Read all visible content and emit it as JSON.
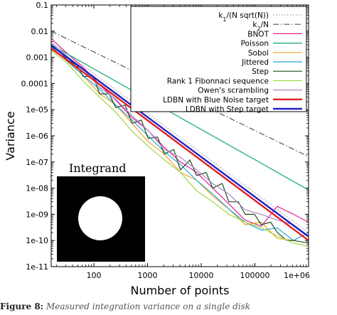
{
  "chart_data": {
    "type": "line",
    "xlabel": "Number of points",
    "ylabel": "Variance",
    "xscale": "log",
    "yscale": "log",
    "xlim": [
      16,
      1000000
    ],
    "ylim": [
      1e-11,
      0.1
    ],
    "x_ticks": [
      "100",
      "1000",
      "10000",
      "100000",
      "1e+06"
    ],
    "y_ticks": [
      "0.1",
      "0.01",
      "0.001",
      "0.0001",
      "1e-05",
      "1e-06",
      "1e-07",
      "1e-08",
      "1e-09",
      "1e-10",
      "1e-11"
    ],
    "legend_position": "top-right",
    "series": [
      {
        "name": "k1/(N sqrt(N))",
        "color": "#999999",
        "dash": "dotted",
        "x": [
          16,
          1000000
        ],
        "y": [
          0.0039,
          2e-10
        ]
      },
      {
        "name": "k2/N",
        "color": "#555555",
        "dash": "dashdot",
        "x": [
          16,
          1000000
        ],
        "y": [
          0.01,
          1.6e-07
        ]
      },
      {
        "name": "BNOT",
        "color": "#e0209a",
        "x": [
          16,
          32,
          64,
          128,
          256,
          512,
          1024,
          2048,
          4096,
          8192,
          16384,
          32768,
          65536,
          131072,
          262144,
          524288,
          1000000
        ],
        "y": [
          0.0052,
          0.0014,
          0.0004,
          9e-05,
          2.3e-05,
          5e-06,
          1.6e-06,
          3.6e-07,
          1e-07,
          4e-08,
          1e-08,
          2.5e-09,
          6e-10,
          3.5e-10,
          2e-09,
          1e-09,
          5e-10
        ]
      },
      {
        "name": "Poisson",
        "color": "#10a878",
        "x": [
          16,
          1000000
        ],
        "y": [
          0.003,
          8.5e-09
        ]
      },
      {
        "name": "Sobol",
        "color": "#f0a020",
        "x": [
          16,
          32,
          64,
          128,
          256,
          512,
          1024,
          2048,
          4096,
          8192,
          16384,
          32768,
          65536,
          131072,
          262144,
          524288,
          1000000
        ],
        "y": [
          0.002,
          0.0008,
          0.0002,
          4e-05,
          1.5e-05,
          3e-06,
          6e-07,
          2e-07,
          4e-08,
          2e-08,
          5e-09,
          1.6e-09,
          4e-10,
          5e-10,
          1.2e-10,
          1e-10,
          2e-10
        ]
      },
      {
        "name": "Jittered",
        "color": "#28a8d0",
        "x": [
          16,
          32,
          64,
          128,
          256,
          512,
          1024,
          2048,
          4096,
          8192,
          16384,
          32768,
          65536,
          131072,
          262144,
          524288,
          1000000
        ],
        "y": [
          0.0025,
          0.0007,
          0.0002,
          6e-05,
          1.5e-05,
          4e-06,
          1e-06,
          2.5e-07,
          8e-08,
          2e-08,
          6e-09,
          1.6e-09,
          5e-10,
          2.5e-10,
          3e-10,
          1e-10,
          2e-10
        ]
      },
      {
        "name": "Step",
        "color": "#1f4d1f",
        "x": [
          16,
          24,
          32,
          48,
          64,
          96,
          128,
          192,
          256,
          384,
          512,
          768,
          1024,
          1536,
          2048,
          3072,
          4096,
          6144,
          8192,
          12288,
          16384,
          24576,
          32768,
          49152,
          65536,
          98304,
          131072,
          196608,
          262144,
          393216,
          524288,
          1000000
        ],
        "y": [
          0.003,
          0.0015,
          0.0008,
          0.0005,
          0.00018,
          0.0002,
          4e-05,
          4e-05,
          1.2e-05,
          1.5e-05,
          3e-06,
          4e-06,
          8e-07,
          9e-07,
          2e-07,
          3e-07,
          5e-08,
          1.2e-07,
          3e-08,
          4e-08,
          1e-08,
          1.5e-08,
          3e-09,
          3e-09,
          1e-09,
          1e-09,
          4e-10,
          5e-10,
          2e-10,
          1e-10,
          1e-10,
          8e-11
        ]
      },
      {
        "name": "Rank 1 Fibonnaci sequence",
        "color": "#a0d840",
        "x": [
          16,
          32,
          64,
          128,
          256,
          512,
          1024,
          2048,
          4096,
          8192,
          16384,
          32768,
          65536,
          131072,
          262144,
          524288,
          1000000
        ],
        "y": [
          0.0018,
          0.0006,
          0.00012,
          3e-05,
          8e-06,
          1.5e-06,
          4e-07,
          1.2e-07,
          4e-08,
          8e-09,
          3e-09,
          1e-09,
          5e-10,
          3e-10,
          1.5e-10,
          8e-11,
          6e-11
        ]
      },
      {
        "name": "Owen's scrambling",
        "color": "#a888c8",
        "x": [
          16,
          32,
          64,
          128,
          256,
          512,
          1024,
          2048,
          4096,
          8192,
          16384,
          32768,
          65536,
          131072,
          262144,
          524288,
          1000000
        ],
        "y": [
          0.0035,
          0.0011,
          0.00035,
          7e-05,
          2.5e-05,
          6e-06,
          1.6e-06,
          3e-07,
          1.5e-07,
          5e-08,
          1.5e-08,
          6e-09,
          1.5e-09,
          1e-09,
          6e-10,
          4e-10,
          1.5e-10
        ]
      },
      {
        "name": "LDBN with Blue Noise target",
        "color": "#e02020",
        "x": [
          16,
          1000000
        ],
        "y": [
          0.0022,
          1e-10
        ]
      },
      {
        "name": "LDBN with Step target",
        "color": "#2020c8",
        "x": [
          16,
          1000000
        ],
        "y": [
          0.0028,
          1.4e-10
        ]
      }
    ],
    "inset": {
      "title": "Integrand",
      "shape": "white disc on black square"
    }
  },
  "caption": {
    "label": "Figure 8:",
    "text": "Measured integration variance on a single disk"
  }
}
